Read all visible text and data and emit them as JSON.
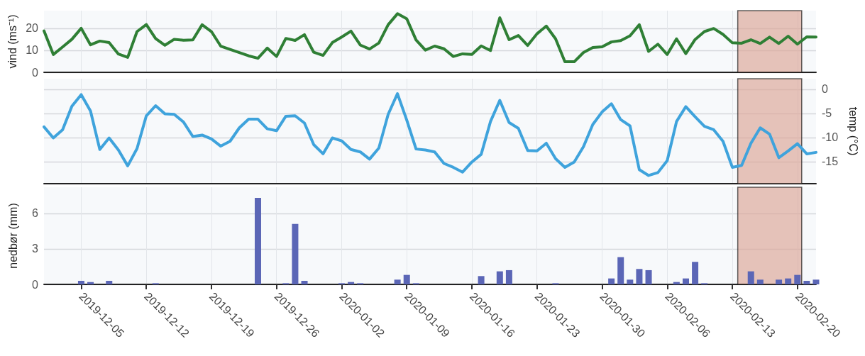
{
  "chart_data": [
    {
      "type": "line",
      "ylabel": "vind (ms⁻¹)",
      "color": "#2f7f35",
      "marker": "none",
      "grid": true,
      "tick_labels": "y",
      "xlim": [
        "2019-12-01",
        "2020-02-22"
      ],
      "ylim": [
        0,
        28
      ],
      "yticks": [
        0,
        10,
        20
      ],
      "xticks": [
        "2019-12-05",
        "2019-12-12",
        "2019-12-19",
        "2019-12-26",
        "2020-01-02",
        "2020-01-09",
        "2020-01-16",
        "2020-01-23",
        "2020-01-30",
        "2020-02-06",
        "2020-02-13",
        "2020-02-20"
      ],
      "bands": [
        {
          "axis": "x",
          "from": "2020-02-13T14:00",
          "to": "2020-02-20T11:00",
          "color": "#dca595"
        }
      ],
      "x": [
        "2019-12-01",
        "2019-12-02",
        "2019-12-03",
        "2019-12-04",
        "2019-12-05",
        "2019-12-06",
        "2019-12-07",
        "2019-12-08",
        "2019-12-09",
        "2019-12-10",
        "2019-12-11",
        "2019-12-12",
        "2019-12-13",
        "2019-12-14",
        "2019-12-15",
        "2019-12-16",
        "2019-12-17",
        "2019-12-18",
        "2019-12-19",
        "2019-12-20",
        "2019-12-21",
        "2019-12-22",
        "2019-12-23",
        "2019-12-24",
        "2019-12-25",
        "2019-12-26",
        "2019-12-27",
        "2019-12-28",
        "2019-12-29",
        "2019-12-30",
        "2019-12-31",
        "2020-01-01",
        "2020-01-02",
        "2020-01-03",
        "2020-01-04",
        "2020-01-05",
        "2020-01-06",
        "2020-01-07",
        "2020-01-08",
        "2020-01-09",
        "2020-01-10",
        "2020-01-11",
        "2020-01-12",
        "2020-01-13",
        "2020-01-14",
        "2020-01-15",
        "2020-01-16",
        "2020-01-17",
        "2020-01-18",
        "2020-01-19",
        "2020-01-20",
        "2020-01-21",
        "2020-01-22",
        "2020-01-23",
        "2020-01-24",
        "2020-01-25",
        "2020-01-26",
        "2020-01-27",
        "2020-01-28",
        "2020-01-29",
        "2020-01-30",
        "2020-01-31",
        "2020-02-01",
        "2020-02-02",
        "2020-02-03",
        "2020-02-04",
        "2020-02-05",
        "2020-02-06",
        "2020-02-07",
        "2020-02-08",
        "2020-02-09",
        "2020-02-10",
        "2020-02-11",
        "2020-02-12",
        "2020-02-13",
        "2020-02-14",
        "2020-02-15",
        "2020-02-16",
        "2020-02-17",
        "2020-02-18",
        "2020-02-19",
        "2020-02-20",
        "2020-02-21",
        "2020-02-22"
      ],
      "values": [
        18.8,
        8.1,
        11.5,
        15,
        20,
        12.5,
        14.2,
        13.5,
        8.3,
        6.8,
        18.5,
        21.7,
        15.3,
        12.3,
        15,
        14.6,
        14.7,
        21.6,
        18.5,
        11.9,
        10.4,
        9,
        7.5,
        6.4,
        11,
        7.2,
        15.4,
        14.5,
        17.1,
        9.1,
        7.7,
        13.5,
        16,
        18.7,
        12.4,
        10.6,
        13.3,
        21.6,
        26.6,
        24.3,
        14.7,
        10.1,
        11.9,
        10.7,
        7.2,
        8.4,
        8.1,
        12,
        9.9,
        24.8,
        14.8,
        16.7,
        12.2,
        17.5,
        21,
        15.2,
        4.8,
        4.8,
        9,
        11.3,
        11.6,
        13.8,
        14.4,
        16.6,
        21.6,
        9.5,
        12.8,
        8.1,
        15.2,
        8.5,
        14.9,
        18.5,
        19.9,
        17.2,
        13.4,
        13.2,
        14.8,
        13.1,
        16,
        13.1,
        16.4,
        12.8,
        16.1,
        16
      ]
    },
    {
      "type": "line",
      "y2label": "temp (°C)",
      "marker": "none",
      "grid": true,
      "tick_labels": "y",
      "xlim": [
        "2019-12-01",
        "2020-02-22"
      ],
      "y2lim": [
        -19.6,
        2.2
      ],
      "y2ticks": [
        0,
        -5,
        -10,
        -15
      ],
      "xticks": [
        "2019-12-05",
        "2019-12-12",
        "2019-12-19",
        "2019-12-26",
        "2020-01-02",
        "2020-01-09",
        "2020-01-16",
        "2020-01-23",
        "2020-01-30",
        "2020-02-06",
        "2020-02-13",
        "2020-02-20"
      ],
      "bands": [
        {
          "axis": "x",
          "from": "2020-02-13T14:00",
          "to": "2020-02-20T11:00",
          "color": "#dca595"
        }
      ],
      "x": [
        "2019-12-01",
        "2019-12-02",
        "2019-12-03",
        "2019-12-04",
        "2019-12-05",
        "2019-12-06",
        "2019-12-07",
        "2019-12-08",
        "2019-12-09",
        "2019-12-10",
        "2019-12-11",
        "2019-12-12",
        "2019-12-13",
        "2019-12-14",
        "2019-12-15",
        "2019-12-16",
        "2019-12-17",
        "2019-12-18",
        "2019-12-19",
        "2019-12-20",
        "2019-12-21",
        "2019-12-22",
        "2019-12-23",
        "2019-12-24",
        "2019-12-25",
        "2019-12-26",
        "2019-12-27",
        "2019-12-28",
        "2019-12-29",
        "2019-12-30",
        "2019-12-31",
        "2020-01-01",
        "2020-01-02",
        "2020-01-03",
        "2020-01-04",
        "2020-01-05",
        "2020-01-06",
        "2020-01-07",
        "2020-01-08",
        "2020-01-09",
        "2020-01-10",
        "2020-01-11",
        "2020-01-12",
        "2020-01-13",
        "2020-01-14",
        "2020-01-15",
        "2020-01-16",
        "2020-01-17",
        "2020-01-18",
        "2020-01-19",
        "2020-01-20",
        "2020-01-21",
        "2020-01-22",
        "2020-01-23",
        "2020-01-24",
        "2020-01-25",
        "2020-01-26",
        "2020-01-27",
        "2020-01-28",
        "2020-01-29",
        "2020-01-30",
        "2020-01-31",
        "2020-02-01",
        "2020-02-02",
        "2020-02-03",
        "2020-02-04",
        "2020-02-05",
        "2020-02-06",
        "2020-02-07",
        "2020-02-08",
        "2020-02-09",
        "2020-02-10",
        "2020-02-11",
        "2020-02-12",
        "2020-02-13",
        "2020-02-14",
        "2020-02-15",
        "2020-02-16",
        "2020-02-17",
        "2020-02-18",
        "2020-02-19",
        "2020-02-20",
        "2020-02-21",
        "2020-02-22"
      ],
      "series": [
        {
          "color": "#3fa3dc",
          "axis": "y2",
          "values": [
            -7.8,
            -10.1,
            -8.4,
            -3.5,
            -1.1,
            -4.5,
            -12.5,
            -10.1,
            -12.6,
            -15.9,
            -12.3,
            -5.5,
            -3.4,
            -5.1,
            -5.2,
            -6.8,
            -9.8,
            -9.5,
            -10.3,
            -11.8,
            -10.8,
            -8,
            -6.2,
            -6.2,
            -8.2,
            -8.6,
            -5.6,
            -5.5,
            -7,
            -11.5,
            -13.4,
            -10.1,
            -10.7,
            -12.5,
            -13,
            -14.5,
            -12.2,
            -5.2,
            -0.9,
            -6.4,
            -12.4,
            -12.6,
            -13,
            -15.4,
            -16.2,
            -17.2,
            -15.1,
            -13.5,
            -6.7,
            -2.3,
            -6.9,
            -8.1,
            -12.7,
            -12.8,
            -11.2,
            -14.4,
            -16.2,
            -15.1,
            -11.9,
            -7.3,
            -4.7,
            -3,
            -6.3,
            -7.6,
            -16.7,
            -17.9,
            -17.3,
            -14.8,
            -6.7,
            -3.6,
            -5.7,
            -7.7,
            -8.4,
            -10.8,
            -16.2,
            -15.8,
            -11.2,
            -8,
            -9.3,
            -14.2,
            -12.8,
            -11.3,
            -13.4,
            -13.1
          ]
        }
      ]
    },
    {
      "type": "bar",
      "ylabel": "nedbør (mm)",
      "color": "#5b66b6",
      "grid": true,
      "xlim": [
        "2019-12-01",
        "2020-02-22"
      ],
      "ylim": [
        0,
        8.2
      ],
      "yticks": [
        0,
        3,
        6
      ],
      "xticks": [
        "2019-12-05",
        "2019-12-12",
        "2019-12-19",
        "2019-12-26",
        "2020-01-02",
        "2020-01-09",
        "2020-01-16",
        "2020-01-23",
        "2020-01-30",
        "2020-02-06",
        "2020-02-13",
        "2020-02-20"
      ],
      "bands": [
        {
          "axis": "x",
          "from": "2020-02-13T14:00",
          "to": "2020-02-20T11:00",
          "color": "#dca595"
        }
      ],
      "x": [
        "2019-12-05",
        "2019-12-06",
        "2019-12-08",
        "2019-12-13",
        "2019-12-24",
        "2019-12-27",
        "2019-12-28",
        "2019-12-29",
        "2020-01-02",
        "2020-01-03",
        "2020-01-04",
        "2020-01-08",
        "2020-01-09",
        "2020-01-10",
        "2020-01-17",
        "2020-01-19",
        "2020-01-20",
        "2020-01-25",
        "2020-01-31",
        "2020-02-01",
        "2020-02-02",
        "2020-02-03",
        "2020-02-04",
        "2020-02-07",
        "2020-02-08",
        "2020-02-09",
        "2020-02-10",
        "2020-02-15",
        "2020-02-16",
        "2020-02-18",
        "2020-02-19",
        "2020-02-20",
        "2020-02-21",
        "2020-02-22"
      ],
      "values": [
        0.3,
        0.2,
        0.3,
        0.1,
        7.3,
        0.1,
        5.1,
        0.3,
        0.1,
        0.2,
        0.1,
        0.4,
        0.8,
        0.1,
        0.7,
        1.1,
        1.2,
        0.1,
        0.5,
        2.3,
        0.4,
        1.3,
        1.2,
        0.2,
        0.5,
        1.9,
        0.1,
        1.1,
        0.4,
        0.4,
        0.5,
        0.8,
        0.3,
        0.4
      ]
    }
  ]
}
